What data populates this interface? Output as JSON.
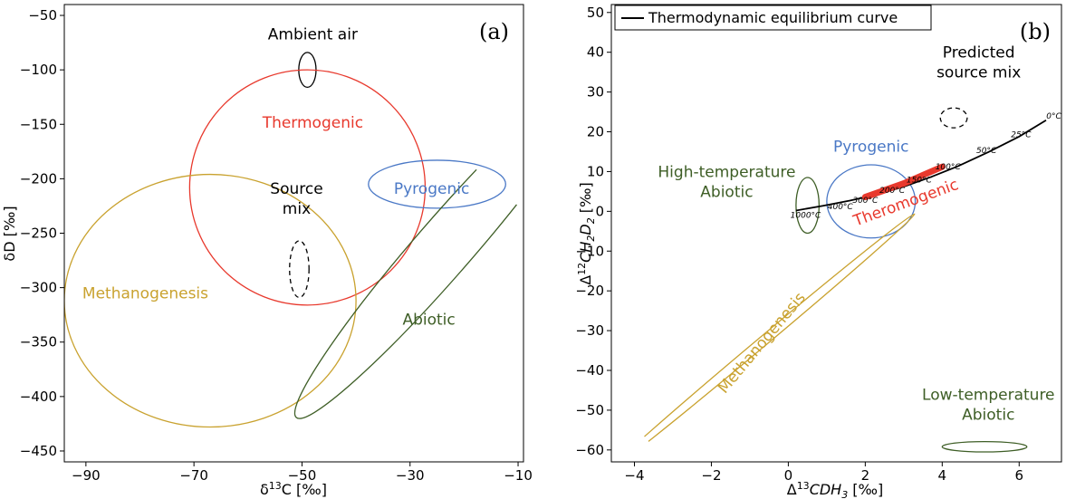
{
  "colors": {
    "thermogenic": "#e8392d",
    "pyrogenic": "#4a78c6",
    "abiotic": "#3e5e26",
    "methanogenesis": "#c9a22f",
    "neutral": "#000000"
  },
  "chart_data": [
    {
      "type": "scatter",
      "panel_label": "(a)",
      "xlabel": "δ13C [‰]",
      "ylabel": "δD [‰]",
      "xlim": [
        -94,
        -9
      ],
      "ylim": [
        -460,
        -40
      ],
      "xticks": [
        "−90",
        "−70",
        "−50",
        "−30",
        "−10"
      ],
      "xtick_values": [
        -90,
        -70,
        -50,
        -30,
        -10
      ],
      "yticks": [
        "−50",
        "−100",
        "−150",
        "−200",
        "−250",
        "−300",
        "−350",
        "−400",
        "−450"
      ],
      "ytick_values": [
        -50,
        -100,
        -150,
        -200,
        -250,
        -300,
        -350,
        -400,
        -450
      ],
      "grid": false,
      "regions": [
        {
          "label": "Ambient air",
          "color": "#000000",
          "style": "solid",
          "cx": -49,
          "cy": -100,
          "rx": 1.6,
          "ry": 16,
          "angle": 0,
          "label_x": -48,
          "label_y": -67
        },
        {
          "label": "Thermogenic",
          "color": "#e8392d",
          "style": "solid",
          "cx": -49,
          "cy": -208,
          "rx": 21.8,
          "ry": 108,
          "angle": 0,
          "label_x": -48,
          "label_y": -148
        },
        {
          "label": "Pyrogenic",
          "color": "#4a78c6",
          "style": "solid",
          "cx": -25,
          "cy": -205,
          "rx": 12.7,
          "ry": 22,
          "angle": 0,
          "label_x": -26,
          "label_y": -209
        },
        {
          "label": "Methanogenesis",
          "color": "#c9a22f",
          "style": "solid",
          "cx": -67,
          "cy": -312,
          "rx": 27,
          "ry": 116,
          "angle": 0,
          "label_x": -79,
          "label_y": -305
        },
        {
          "label": "Abiotic",
          "color": "#3e5e26",
          "style": "solid",
          "cx": -23.5,
          "cy": -262,
          "rx": 42,
          "ry": 26,
          "angle": -49,
          "label_x": -26.5,
          "label_y": -329
        },
        {
          "label": "Source mix",
          "lines": [
            "Source",
            "mix"
          ],
          "color": "#000000",
          "style": "dashed",
          "cx": -50.5,
          "cy": -283,
          "rx": 1.8,
          "ry": 26,
          "angle": 0,
          "label_x": -51,
          "label_y": -218
        }
      ]
    },
    {
      "type": "line",
      "panel_label": "(b)",
      "xlabel": "Δ13CDH3 [‰]",
      "ylabel": "Δ12CH2D2 [‰]",
      "xlim": [
        -4.6,
        7.1
      ],
      "ylim": [
        -63,
        52
      ],
      "xticks": [
        "−4",
        "−2",
        "0",
        "2",
        "4",
        "6"
      ],
      "xtick_values": [
        -4,
        -2,
        0,
        2,
        4,
        6
      ],
      "yticks": [
        "50",
        "40",
        "30",
        "20",
        "10",
        "0",
        "−10",
        "−20",
        "−30",
        "−40",
        "−50",
        "−60"
      ],
      "ytick_values": [
        50,
        40,
        30,
        20,
        10,
        0,
        -10,
        -20,
        -30,
        -40,
        -50,
        -60
      ],
      "grid": false,
      "legend": {
        "position": "top-left",
        "entries": [
          {
            "label": "Thermodynamic equilibrium curve",
            "color": "#000000"
          }
        ]
      },
      "series": [
        {
          "name": "Thermodynamic equilibrium curve",
          "color": "#000000",
          "x": [
            0.2,
            0.9,
            1.6,
            2.3,
            3.0,
            3.7,
            4.4,
            5.2,
            6.0,
            6.7
          ],
          "y": [
            0.2,
            1.4,
            2.7,
            4.2,
            6.2,
            8.6,
            11.3,
            14.9,
            18.8,
            22.9
          ]
        }
      ],
      "temperature_labels": [
        {
          "text": "1000°C",
          "x": 0.45,
          "y": -1.6
        },
        {
          "text": "400°C",
          "x": 1.35,
          "y": 0.5
        },
        {
          "text": "300°C",
          "x": 2.0,
          "y": 2.1
        },
        {
          "text": "200°C",
          "x": 2.7,
          "y": 4.6
        },
        {
          "text": "150°C",
          "x": 3.4,
          "y": 7.2
        },
        {
          "text": "100°C",
          "x": 4.15,
          "y": 10.5
        },
        {
          "text": "50°C",
          "x": 5.15,
          "y": 14.6
        },
        {
          "text": "25°C",
          "x": 6.05,
          "y": 18.6
        },
        {
          "text": "0°C",
          "x": 6.9,
          "y": 23.3
        }
      ],
      "regions": [
        {
          "label": "Pyrogenic",
          "color": "#4a78c6",
          "style": "solid",
          "cx": 2.15,
          "cy": 2.5,
          "rx": 1.15,
          "ry": 9.2,
          "angle": 0,
          "label_x": 2.15,
          "label_y": 16.4
        },
        {
          "label": "High-temperature Abiotic",
          "lines": [
            "High-temperature",
            "Abiotic"
          ],
          "color": "#3e5e26",
          "style": "solid",
          "cx": 0.5,
          "cy": 1.5,
          "rx": 0.3,
          "ry": 7,
          "angle": 0,
          "label_x": -1.6,
          "label_y": 7.5
        },
        {
          "label": "Predicted source mix",
          "lines": [
            "Predicted",
            "source mix"
          ],
          "color": "#000000",
          "style": "dashed",
          "cx": 4.3,
          "cy": 23.5,
          "rx": 0.35,
          "ry": 2.5,
          "angle": 0,
          "label_x": 4.95,
          "label_y": 37.5
        },
        {
          "label": "Methanogenesis",
          "color": "#c9a22f",
          "style": "solid",
          "cx": -0.7,
          "cy": -33,
          "rx": 5.2,
          "ry": 1.2,
          "angle": -40,
          "label_x": -0.7,
          "label_y": -33
        },
        {
          "label": "Low-temperature Abiotic",
          "lines": [
            "Low-temperature",
            "Abiotic"
          ],
          "color": "#3e5e26",
          "style": "solid",
          "cx": 5.1,
          "cy": -59.2,
          "rx": 1.1,
          "ry": 1.3,
          "angle": 0,
          "label_x": 5.2,
          "label_y": -48.5
        }
      ],
      "thermogenic": {
        "label": "Theromogenic",
        "color": "#e8392d",
        "x": [
          2.0,
          3.0,
          4.0
        ],
        "y": [
          3.6,
          7.0,
          11.2
        ],
        "label_x": 3.1,
        "label_y": 1.0
      }
    }
  ]
}
